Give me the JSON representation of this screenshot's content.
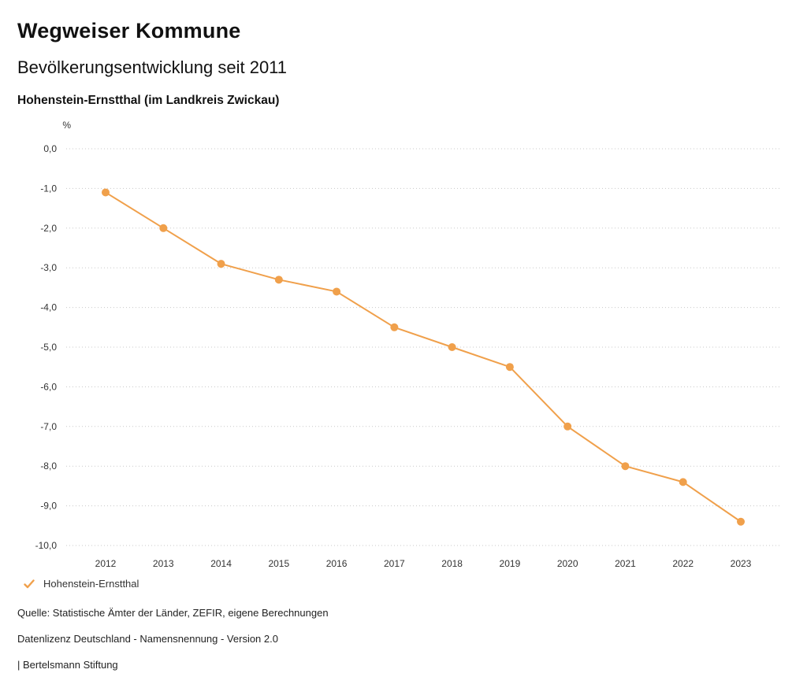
{
  "header": {
    "title": "Wegweiser Kommune",
    "subtitle": "Bevölkerungsentwicklung seit 2011",
    "location": "Hohenstein-Ernstthal (im Landkreis Zwickau)"
  },
  "chart_data": {
    "type": "line",
    "title": "Bevölkerungsentwicklung seit 2011",
    "subtitle": "Hohenstein-Ernstthal (im Landkreis Zwickau)",
    "xlabel": "",
    "ylabel": "%",
    "ylim": [
      -10,
      0
    ],
    "y_ticks": [
      0,
      -1,
      -2,
      -3,
      -4,
      -5,
      -6,
      -7,
      -8,
      -9,
      -10
    ],
    "grid": true,
    "grid_style": "dotted",
    "legend_position": "bottom-left",
    "categories": [
      "2012",
      "2013",
      "2014",
      "2015",
      "2016",
      "2017",
      "2018",
      "2019",
      "2020",
      "2021",
      "2022",
      "2023"
    ],
    "series": [
      {
        "name": "Hohenstein-Ernstthal",
        "color": "#F0A04B",
        "values": [
          -1.1,
          -2.0,
          -2.9,
          -3.3,
          -3.6,
          -4.5,
          -5.0,
          -5.5,
          -7.0,
          -8.0,
          -8.4,
          -9.4
        ]
      }
    ]
  },
  "legend": {
    "label": "Hohenstein-Ernstthal"
  },
  "footer": {
    "source": "Quelle: Statistische Ämter der Länder, ZEFIR, eigene Berechnungen",
    "license": "Datenlizenz Deutschland - Namensnennung - Version 2.0",
    "attribution": "| Bertelsmann Stiftung"
  },
  "colors": {
    "accent": "#F0A04B",
    "gridline": "#c8c8c8",
    "text": "#111111"
  }
}
